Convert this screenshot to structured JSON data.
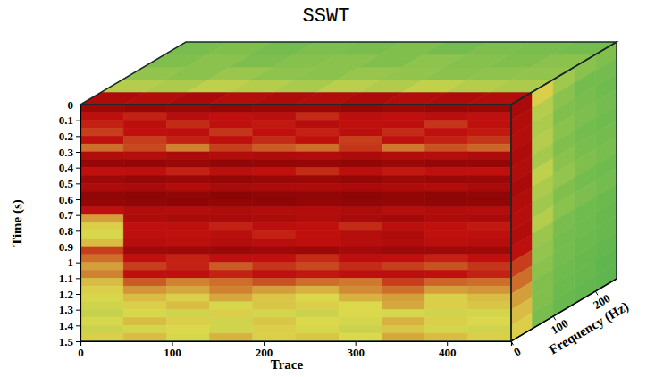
{
  "chart_data": {
    "type": "heatmap",
    "title": "SSWT",
    "x_label": "Trace",
    "y_label": "Time (s)",
    "z_label": "Frequency (Hz)",
    "xlim": [
      0,
      470
    ],
    "xticks": [
      0,
      100,
      200,
      300,
      400
    ],
    "ylim": [
      0,
      1.5
    ],
    "yticks": [
      0,
      0.1,
      0.2,
      0.3,
      0.4,
      0.5,
      0.6,
      0.7,
      0.8,
      0.9,
      1,
      1.1,
      1.2,
      1.3,
      1.4,
      1.5
    ],
    "zlim": [
      0,
      250
    ],
    "zticks": [
      0,
      100,
      200
    ],
    "front": {
      "x": [
        0,
        47,
        94,
        141,
        188,
        235,
        282,
        329,
        376,
        423,
        470
      ],
      "y": [
        0,
        0.05,
        0.1,
        0.15,
        0.2,
        0.25,
        0.3,
        0.35,
        0.4,
        0.45,
        0.5,
        0.55,
        0.6,
        0.65,
        0.7,
        0.75,
        0.8,
        0.85,
        0.9,
        0.95,
        1,
        1.05,
        1.1,
        1.15,
        1.2,
        1.25,
        1.3,
        1.35,
        1.4,
        1.45,
        1.5
      ],
      "values": [
        [
          0.82,
          0.86,
          0.84,
          0.88,
          0.85,
          0.83,
          0.87,
          0.84,
          0.86,
          0.85
        ],
        [
          0.62,
          0.58,
          0.66,
          0.6,
          0.64,
          0.57,
          0.63,
          0.6,
          0.65,
          0.61
        ],
        [
          0.58,
          0.63,
          0.57,
          0.61,
          0.59,
          0.66,
          0.6,
          0.62,
          0.56,
          0.6
        ],
        [
          0.55,
          0.6,
          0.62,
          0.56,
          0.6,
          0.58,
          0.63,
          0.57,
          0.61,
          0.59
        ],
        [
          0.6,
          0.55,
          0.58,
          0.62,
          0.57,
          0.6,
          0.55,
          0.61,
          0.58,
          0.56
        ],
        [
          0.5,
          0.54,
          0.48,
          0.55,
          0.52,
          0.5,
          0.56,
          0.49,
          0.53,
          0.51
        ],
        [
          0.7,
          0.68,
          0.74,
          0.7,
          0.72,
          0.69,
          0.73,
          0.7,
          0.68,
          0.71
        ],
        [
          0.86,
          0.88,
          0.85,
          0.9,
          0.87,
          0.86,
          0.89,
          0.84,
          0.87,
          0.88
        ],
        [
          0.6,
          0.62,
          0.58,
          0.64,
          0.6,
          0.57,
          0.63,
          0.59,
          0.61,
          0.6
        ],
        [
          0.82,
          0.86,
          0.84,
          0.88,
          0.85,
          0.83,
          0.87,
          0.82,
          0.85,
          0.84
        ],
        [
          0.72,
          0.75,
          0.7,
          0.76,
          0.73,
          0.71,
          0.74,
          0.72,
          0.7,
          0.75
        ],
        [
          0.9,
          0.92,
          0.9,
          0.93,
          0.91,
          0.9,
          0.92,
          0.89,
          0.91,
          0.9
        ],
        [
          0.88,
          0.9,
          0.92,
          0.89,
          0.91,
          0.88,
          0.9,
          0.87,
          0.9,
          0.89
        ],
        [
          0.6,
          0.7,
          0.68,
          0.72,
          0.7,
          0.69,
          0.71,
          0.66,
          0.7,
          0.68
        ],
        [
          0.45,
          0.72,
          0.76,
          0.74,
          0.73,
          0.7,
          0.75,
          0.78,
          0.72,
          0.74
        ],
        [
          0.4,
          0.6,
          0.62,
          0.58,
          0.63,
          0.6,
          0.57,
          0.64,
          0.6,
          0.59
        ],
        [
          0.38,
          0.62,
          0.6,
          0.64,
          0.58,
          0.6,
          0.66,
          0.72,
          0.6,
          0.62
        ],
        [
          0.42,
          0.66,
          0.64,
          0.68,
          0.65,
          0.62,
          0.67,
          0.7,
          0.64,
          0.66
        ],
        [
          0.55,
          0.8,
          0.82,
          0.84,
          0.8,
          0.83,
          0.78,
          0.82,
          0.8,
          0.81
        ],
        [
          0.5,
          0.6,
          0.58,
          0.62,
          0.6,
          0.57,
          0.63,
          0.6,
          0.58,
          0.6
        ],
        [
          0.45,
          0.55,
          0.58,
          0.52,
          0.56,
          0.54,
          0.57,
          0.55,
          0.53,
          0.56
        ],
        [
          0.48,
          0.6,
          0.62,
          0.58,
          0.61,
          0.59,
          0.62,
          0.64,
          0.6,
          0.58
        ],
        [
          0.42,
          0.52,
          0.48,
          0.5,
          0.53,
          0.5,
          0.49,
          0.55,
          0.51,
          0.5
        ],
        [
          0.4,
          0.46,
          0.44,
          0.48,
          0.45,
          0.43,
          0.47,
          0.5,
          0.45,
          0.46
        ],
        [
          0.38,
          0.42,
          0.4,
          0.44,
          0.41,
          0.39,
          0.43,
          0.45,
          0.4,
          0.42
        ],
        [
          0.36,
          0.4,
          0.42,
          0.38,
          0.41,
          0.4,
          0.39,
          0.44,
          0.4,
          0.41
        ],
        [
          0.34,
          0.38,
          0.36,
          0.4,
          0.37,
          0.35,
          0.39,
          0.38,
          0.36,
          0.37
        ],
        [
          0.38,
          0.42,
          0.4,
          0.36,
          0.41,
          0.39,
          0.37,
          0.43,
          0.4,
          0.39
        ],
        [
          0.35,
          0.37,
          0.39,
          0.36,
          0.4,
          0.38,
          0.35,
          0.41,
          0.37,
          0.36
        ],
        [
          0.4,
          0.42,
          0.38,
          0.43,
          0.4,
          0.41,
          0.39,
          0.44,
          0.42,
          0.4
        ]
      ]
    },
    "side": {
      "z": [
        0,
        50,
        100,
        150,
        200,
        250
      ],
      "y": [
        0,
        0.1,
        0.2,
        0.3,
        0.4,
        0.5,
        0.6,
        0.7,
        0.8,
        0.9,
        1,
        1.1,
        1.2,
        1.3,
        1.4,
        1.5
      ],
      "values": [
        [
          0.75,
          0.4,
          0.25,
          0.2,
          0.18
        ],
        [
          0.7,
          0.3,
          0.2,
          0.15,
          0.15
        ],
        [
          0.68,
          0.28,
          0.18,
          0.16,
          0.14
        ],
        [
          0.72,
          0.3,
          0.2,
          0.17,
          0.15
        ],
        [
          0.7,
          0.26,
          0.18,
          0.15,
          0.14
        ],
        [
          0.74,
          0.32,
          0.2,
          0.16,
          0.15
        ],
        [
          0.7,
          0.28,
          0.22,
          0.18,
          0.16
        ],
        [
          0.66,
          0.25,
          0.18,
          0.15,
          0.14
        ],
        [
          0.7,
          0.3,
          0.2,
          0.17,
          0.15
        ],
        [
          0.62,
          0.24,
          0.16,
          0.14,
          0.13
        ],
        [
          0.55,
          0.22,
          0.15,
          0.14,
          0.12
        ],
        [
          0.5,
          0.2,
          0.15,
          0.13,
          0.12
        ],
        [
          0.45,
          0.18,
          0.14,
          0.12,
          0.11
        ],
        [
          0.42,
          0.18,
          0.13,
          0.12,
          0.1
        ],
        [
          0.4,
          0.16,
          0.12,
          0.11,
          0.1
        ]
      ]
    },
    "top": {
      "x": [
        0,
        47,
        94,
        141,
        188,
        235,
        282,
        329,
        376,
        423,
        470
      ],
      "z": [
        0,
        50,
        100,
        150,
        200,
        250
      ],
      "values": [
        [
          0.72,
          0.7,
          0.74,
          0.68,
          0.71,
          0.7,
          0.73,
          0.69,
          0.72,
          0.7
        ],
        [
          0.3,
          0.28,
          0.32,
          0.3,
          0.27,
          0.31,
          0.29,
          0.33,
          0.3,
          0.28
        ],
        [
          0.22,
          0.2,
          0.24,
          0.21,
          0.2,
          0.23,
          0.22,
          0.2,
          0.21,
          0.22
        ],
        [
          0.18,
          0.2,
          0.17,
          0.19,
          0.2,
          0.18,
          0.21,
          0.19,
          0.18,
          0.2
        ],
        [
          0.16,
          0.18,
          0.15,
          0.17,
          0.16,
          0.18,
          0.15,
          0.17,
          0.16,
          0.15
        ]
      ]
    }
  }
}
